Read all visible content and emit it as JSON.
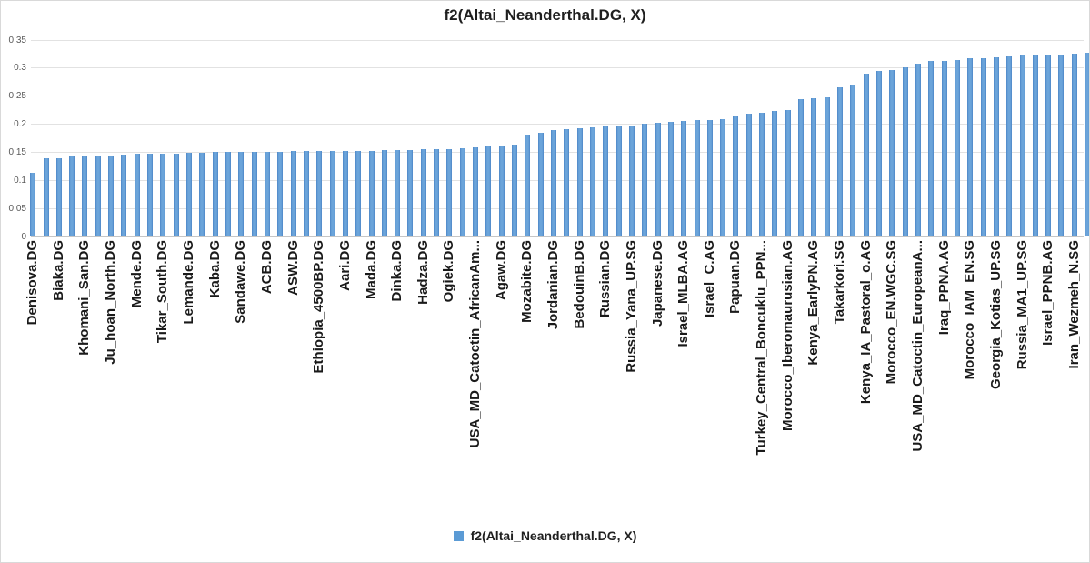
{
  "title": "f2(Altai_Neanderthal.DG, X)",
  "legend": {
    "label": "f2(Altai_Neanderthal.DG, X)",
    "swatch_color": "#5B9BD5"
  },
  "colors": {
    "bar": "#5B9BD5",
    "gridline": "#E2E2E2",
    "axis_text": "#595959",
    "category_text": "#1A1A1A"
  },
  "chart_data": {
    "type": "bar",
    "title": "f2(Altai_Neanderthal.DG, X)",
    "xlabel": "",
    "ylabel": "",
    "ylim": [
      0,
      0.35
    ],
    "ytick_labels": [
      "0",
      "0.05",
      "0.1",
      "0.15",
      "0.2",
      "0.25",
      "0.3",
      "0.35"
    ],
    "grid": true,
    "legend": [
      "f2(Altai_Neanderthal.DG, X)"
    ],
    "legend_position": "bottom",
    "bar_count": 82,
    "category_label_every": 2,
    "categories": [
      "Denisova.DG",
      "Biaka.DG",
      "Khomani_San.DG",
      "Ju_hoan_North.DG",
      "Mende.DG",
      "Tikar_South.DG",
      "Lemande.DG",
      "Kaba.DG",
      "Sandawe.DG",
      "ACB.DG",
      "ASW.DG",
      "Ethiopia_4500BP.DG",
      "Aari.DG",
      "Mada.DG",
      "Dinka.DG",
      "Hadza.DG",
      "Ogiek.DG",
      "USA_MD_Catoctin_AfricanAm...",
      "Agaw.DG",
      "Mozabite.DG",
      "Jordanian.DG",
      "BedouinB.DG",
      "Russian.DG",
      "Russia_Yana_UP.SG",
      "Japanese.DG",
      "Israel_MLBA.AG",
      "Israel_C.AG",
      "Papuan.DG",
      "Turkey_Central_Boncuklu_PPN...",
      "Morocco_Iberomaurusian.AG",
      "Kenya_EarlyPN.AG",
      "Takarkori.SG",
      "Kenya_IA_Pastoral_o.AG",
      "Morocco_EN.WGC.SG",
      "USA_MD_Catoctin_EuropeanA...",
      "Iraq_PPNA.AG",
      "Morocco_IAM_EN.SG",
      "Georgia_Kotias_UP.SG",
      "Russia_MA1_UP.SG",
      "Israel_PPNB.AG",
      "Iran_Wezmeh_N.SG"
    ],
    "category_values": [
      0.113,
      0.14,
      0.143,
      0.145,
      0.147,
      0.148,
      0.149,
      0.15,
      0.15,
      0.151,
      0.152,
      0.152,
      0.153,
      0.153,
      0.154,
      0.155,
      0.156,
      0.158,
      0.162,
      0.181,
      0.189,
      0.193,
      0.196,
      0.198,
      0.203,
      0.205,
      0.208,
      0.216,
      0.221,
      0.225,
      0.247,
      0.265,
      0.29,
      0.297,
      0.308,
      0.313,
      0.317,
      0.319,
      0.323,
      0.324,
      0.325
    ],
    "values": [
      0.113,
      0.139,
      0.14,
      0.142,
      0.143,
      0.144,
      0.145,
      0.146,
      0.147,
      0.147,
      0.148,
      0.148,
      0.149,
      0.149,
      0.15,
      0.15,
      0.15,
      0.151,
      0.151,
      0.151,
      0.152,
      0.152,
      0.152,
      0.152,
      0.153,
      0.153,
      0.153,
      0.154,
      0.154,
      0.154,
      0.155,
      0.155,
      0.156,
      0.157,
      0.158,
      0.16,
      0.162,
      0.164,
      0.181,
      0.185,
      0.189,
      0.191,
      0.193,
      0.195,
      0.196,
      0.197,
      0.198,
      0.201,
      0.203,
      0.204,
      0.205,
      0.207,
      0.208,
      0.209,
      0.216,
      0.219,
      0.221,
      0.223,
      0.225,
      0.245,
      0.247,
      0.248,
      0.265,
      0.269,
      0.29,
      0.295,
      0.297,
      0.302,
      0.308,
      0.312,
      0.313,
      0.315,
      0.317,
      0.318,
      0.319,
      0.321,
      0.323,
      0.323,
      0.324,
      0.324,
      0.325,
      0.327
    ]
  }
}
